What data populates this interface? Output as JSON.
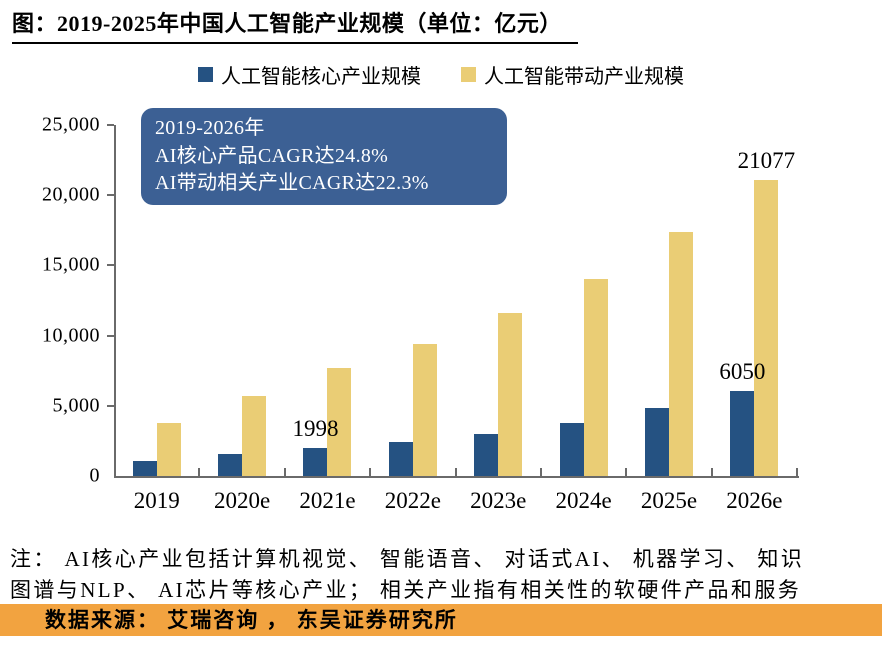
{
  "title": "图：2019-2025年中国人工智能产业规模（单位：亿元）",
  "legend": [
    {
      "label": "人工智能核心产业规模",
      "color": "#255282"
    },
    {
      "label": "人工智能带动产业规模",
      "color": "#EACD75"
    }
  ],
  "annotation_box": {
    "line1": "2019-2026年",
    "line2": "AI核心产品CAGR达24.8%",
    "line3": "AI带动相关产业CAGR达22.3%",
    "bg_color": "#3C6094"
  },
  "chart_data": {
    "type": "bar",
    "title": "2019-2025年中国人工智能产业规模（单位：亿元）",
    "categories": [
      "2019",
      "2020e",
      "2021e",
      "2022e",
      "2023e",
      "2024e",
      "2025e",
      "2026e"
    ],
    "series": [
      {
        "name": "人工智能核心产业规模",
        "color": "#255282",
        "values": [
          1100,
          1550,
          1998,
          2400,
          3000,
          3800,
          4850,
          6050
        ]
      },
      {
        "name": "人工智能带动产业规模",
        "color": "#EACD75",
        "values": [
          3800,
          5700,
          7700,
          9400,
          11600,
          14000,
          17400,
          21077
        ]
      }
    ],
    "point_labels": [
      {
        "series": 0,
        "category_index": 2,
        "text": "1998"
      },
      {
        "series": 0,
        "category_index": 7,
        "text": "6050"
      },
      {
        "series": 1,
        "category_index": 7,
        "text": "21077"
      }
    ],
    "ylim": [
      0,
      25000
    ],
    "yticks": [
      0,
      5000,
      10000,
      15000,
      20000,
      25000
    ],
    "ytick_labels": [
      "0",
      "5,000",
      "10,000",
      "15,000",
      "20,000",
      "25,000"
    ],
    "xlabel": "",
    "ylabel": "",
    "grid": false,
    "legend_position": "top"
  },
  "note": {
    "line1": "注： AI核心产业包括计算机视觉、 智能语音、 对话式AI、 机器学习、 知识",
    "line2": "图谱与NLP、 AI芯片等核心产业； 相关产业指有相关性的软硬件产品和服务"
  },
  "source": "数据来源： 艾瑞咨询 ， 东吴证券研究所",
  "colors": {
    "core_bar": "#255282",
    "driven_bar": "#EACD75",
    "annotation_bg": "#3C6094",
    "source_bg": "#F2A340",
    "axis": "#6A6A6A"
  }
}
